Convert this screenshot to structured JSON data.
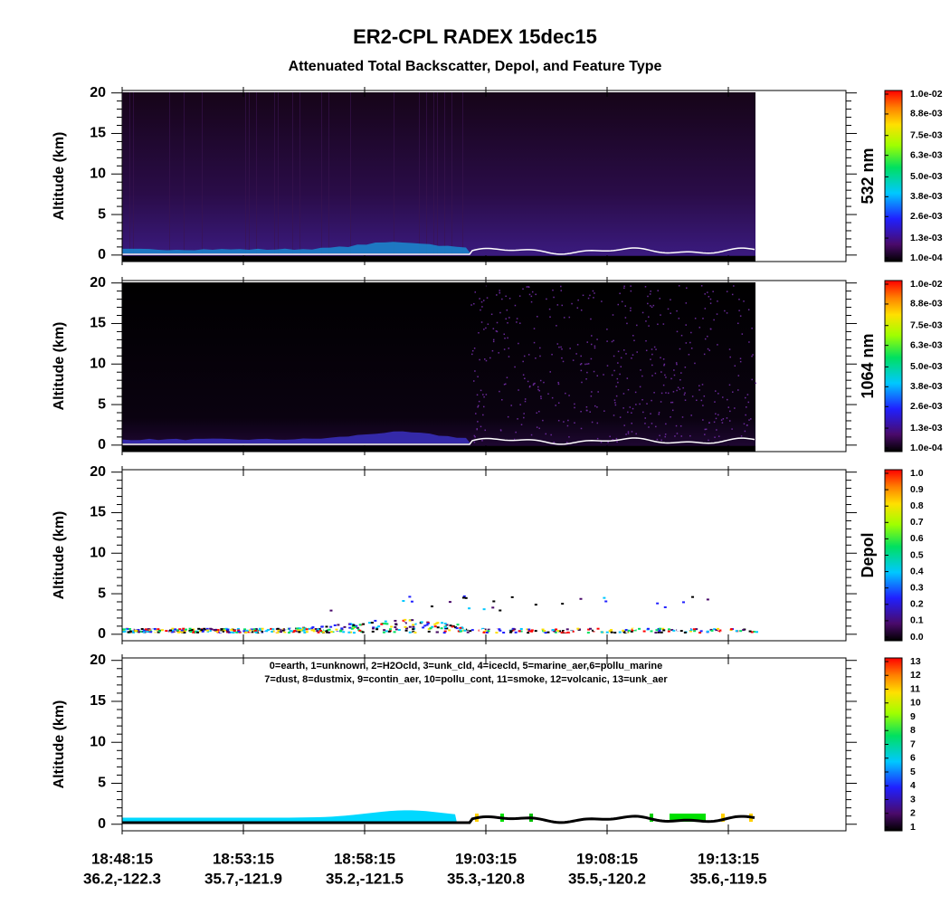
{
  "title": "ER2-CPL  RADEX  15dec15",
  "subtitle": "Attenuated Total Backscatter, Depol, and Feature Type",
  "x_times": [
    "18:48:15",
    "18:53:15",
    "18:58:15",
    "19:03:15",
    "19:08:15",
    "19:13:15"
  ],
  "x_positions": [
    "36.2,-122.3",
    "35.7,-121.9",
    "35.2,-121.5",
    "35.3,-120.8",
    "35.5,-120.2",
    "35.6,-119.5"
  ],
  "chart_data": [
    {
      "type": "heatmap",
      "ylabel": "Altitude (km)",
      "ylim": [
        -0.8,
        20.3
      ],
      "yticks": [
        0,
        5,
        10,
        15,
        20
      ],
      "colorbar_label": "532 nm",
      "colorbar_lim": [
        0.0001,
        0.01
      ],
      "colorbar_ticks": [
        {
          "value": 0.0001,
          "label": "1.0e-04"
        },
        {
          "value": 0.0013,
          "label": "1.3e-03"
        },
        {
          "value": 0.0026,
          "label": "2.6e-03"
        },
        {
          "value": 0.0038,
          "label": "3.8e-03"
        },
        {
          "value": 0.005,
          "label": "5.0e-03"
        },
        {
          "value": 0.0063,
          "label": "6.3e-03"
        },
        {
          "value": 0.0075,
          "label": "7.5e-03"
        },
        {
          "value": 0.0088,
          "label": "8.8e-03"
        },
        {
          "value": 0.01,
          "label": "1.0e-02"
        }
      ]
    },
    {
      "type": "heatmap",
      "ylabel": "Altitude (km)",
      "ylim": [
        -0.8,
        20.3
      ],
      "yticks": [
        0,
        5,
        10,
        15,
        20
      ],
      "colorbar_label": "1064 nm",
      "colorbar_lim": [
        0.0001,
        0.01
      ],
      "colorbar_ticks": [
        {
          "value": 0.0001,
          "label": "1.0e-04"
        },
        {
          "value": 0.0013,
          "label": "1.3e-03"
        },
        {
          "value": 0.0026,
          "label": "2.6e-03"
        },
        {
          "value": 0.0038,
          "label": "3.8e-03"
        },
        {
          "value": 0.005,
          "label": "5.0e-03"
        },
        {
          "value": 0.0063,
          "label": "6.3e-03"
        },
        {
          "value": 0.0075,
          "label": "7.5e-03"
        },
        {
          "value": 0.0088,
          "label": "8.8e-03"
        },
        {
          "value": 0.01,
          "label": "1.0e-02"
        }
      ]
    },
    {
      "type": "heatmap",
      "ylabel": "Altitude (km)",
      "ylim": [
        -0.8,
        20.3
      ],
      "yticks": [
        0,
        5,
        10,
        15,
        20
      ],
      "colorbar_label": "Depol",
      "colorbar_lim": [
        0,
        1
      ],
      "colorbar_ticks": [
        {
          "value": 0,
          "label": "0.0"
        },
        0.1,
        0.2,
        0.3,
        0.4,
        0.5,
        0.6,
        0.7,
        0.8,
        0.9,
        {
          "value": 1,
          "label": "1.0"
        }
      ]
    },
    {
      "type": "heatmap",
      "ylabel": "Altitude (km)",
      "ylim": [
        -0.8,
        20.3
      ],
      "yticks": [
        0,
        5,
        10,
        15,
        20
      ],
      "legend": [
        "0=earth, 1=unknown, 2=H2Ocld, 3=unk_cld, 4=icecld, 5=marine_aer,6=pollu_marine",
        "7=dust, 8=dustmix, 9=contin_aer, 10=pollu_cont, 11=smoke, 12=volcanic, 13=unk_aer"
      ],
      "colorbar_lim": [
        1,
        13
      ],
      "colorbar_ticks": [
        1,
        2,
        3,
        4,
        5,
        6,
        7,
        8,
        9,
        10,
        11,
        12,
        13
      ]
    }
  ]
}
